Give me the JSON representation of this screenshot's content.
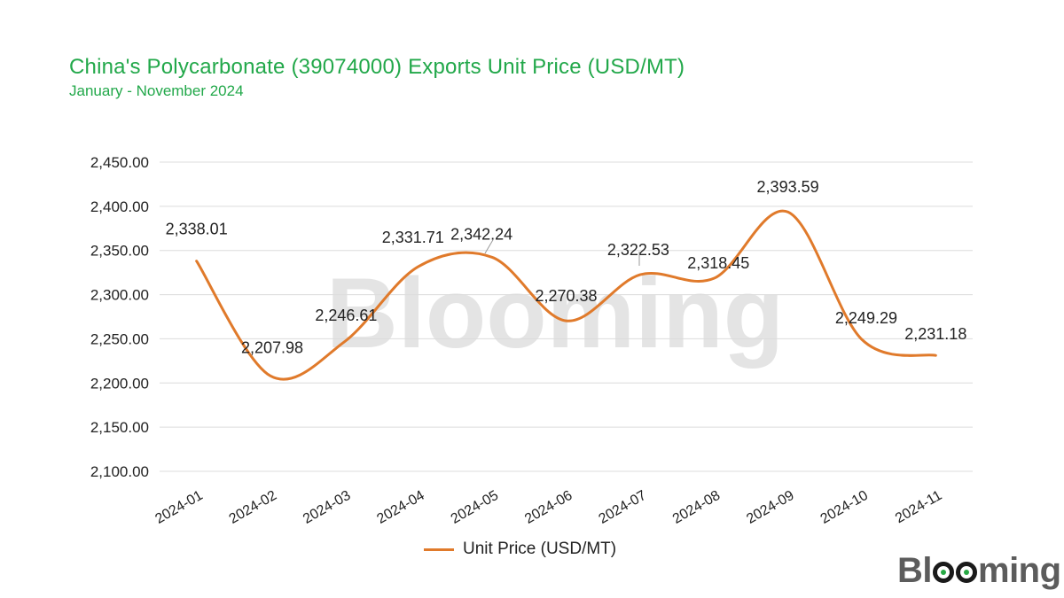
{
  "header": {
    "title": "China's Polycarbonate (39074000) Exports Unit Price (USD/MT)",
    "subtitle": "January - November 2024"
  },
  "colors": {
    "title": "#22a84a",
    "line": "#e07a2b",
    "grid": "#dcdcdc",
    "watermark": "#e4e4e4"
  },
  "brand": {
    "text": "Blooming",
    "watermark": "Blooming"
  },
  "chart_data": {
    "type": "line",
    "title": "China's Polycarbonate (39074000) Exports Unit Price (USD/MT)",
    "subtitle": "January - November 2024",
    "categories": [
      "2024-01",
      "2024-02",
      "2024-03",
      "2024-04",
      "2024-05",
      "2024-06",
      "2024-07",
      "2024-08",
      "2024-09",
      "2024-10",
      "2024-11"
    ],
    "series": [
      {
        "name": "Unit Price (USD/MT)",
        "values": [
          2338.01,
          2207.98,
          2246.61,
          2331.71,
          2342.24,
          2270.38,
          2322.53,
          2318.45,
          2393.59,
          2249.29,
          2231.18
        ],
        "labels": [
          "2,338.01",
          "2,207.98",
          "2,246.61",
          "2,331.71",
          "2,342.24",
          "2,270.38",
          "2,322.53",
          "2,318.45",
          "2,393.59",
          "2,249.29",
          "2,231.18"
        ]
      }
    ],
    "ylim": [
      2100,
      2450
    ],
    "yticks": [
      "2,100.00",
      "2,150.00",
      "2,200.00",
      "2,250.00",
      "2,300.00",
      "2,350.00",
      "2,400.00",
      "2,450.00"
    ],
    "grid": true,
    "legend": "bottom-center",
    "xlabel": "",
    "ylabel": ""
  }
}
